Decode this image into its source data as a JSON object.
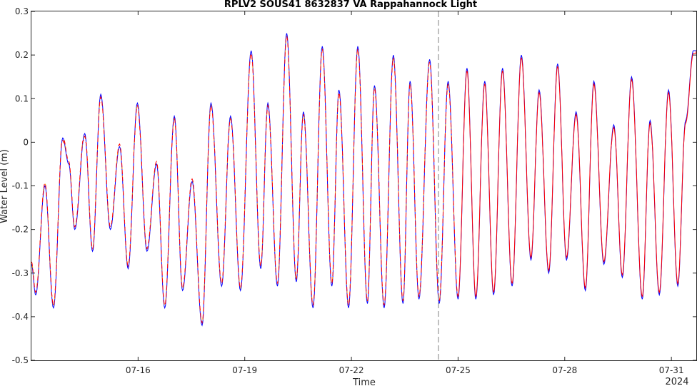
{
  "chart_data": {
    "type": "line",
    "title": "RPLV2 SOUS41 8632837 VA Rappahannock Light",
    "xlabel": "Time",
    "ylabel": "Water Level (m)",
    "year_label": "2024",
    "ylim": [
      -0.5,
      0.3
    ],
    "y_ticks": [
      -0.5,
      -0.4,
      -0.3,
      -0.2,
      -0.1,
      0,
      0.1,
      0.2,
      0.3
    ],
    "y_tick_labels": [
      "-0.5",
      "-0.4",
      "-0.3",
      "-0.2",
      "-0.1",
      "0",
      "0.1",
      "0.2",
      "0.3"
    ],
    "xlim_days": [
      13.0,
      31.7
    ],
    "x_ticks": [
      16,
      19,
      22,
      25,
      28,
      31
    ],
    "x_tick_labels": [
      "07-16",
      "07-19",
      "07-22",
      "07-25",
      "07-28",
      "07-31"
    ],
    "vline_x": 25.0,
    "grid": false,
    "colors": {
      "series_a": "#0000ff",
      "series_b": "#ff0000",
      "series_c": "#ff8c00",
      "axes": "#262626",
      "vline": "#808080"
    },
    "extrema": [
      [
        13.0,
        -0.28
      ],
      [
        13.12,
        -0.35
      ],
      [
        13.38,
        -0.1
      ],
      [
        13.62,
        -0.38
      ],
      [
        13.88,
        0.01
      ],
      [
        14.05,
        -0.05
      ],
      [
        14.22,
        -0.2
      ],
      [
        14.5,
        0.02
      ],
      [
        14.72,
        -0.25
      ],
      [
        14.95,
        0.11
      ],
      [
        15.22,
        -0.2
      ],
      [
        15.48,
        -0.01
      ],
      [
        15.72,
        -0.29
      ],
      [
        15.98,
        0.09
      ],
      [
        16.25,
        -0.25
      ],
      [
        16.52,
        -0.05
      ],
      [
        16.75,
        -0.38
      ],
      [
        17.02,
        0.06
      ],
      [
        17.25,
        -0.34
      ],
      [
        17.52,
        -0.09
      ],
      [
        17.8,
        -0.42
      ],
      [
        18.05,
        0.09
      ],
      [
        18.35,
        -0.33
      ],
      [
        18.6,
        0.06
      ],
      [
        18.88,
        -0.34
      ],
      [
        19.18,
        0.21
      ],
      [
        19.45,
        -0.29
      ],
      [
        19.65,
        0.09
      ],
      [
        19.92,
        -0.33
      ],
      [
        20.18,
        0.25
      ],
      [
        20.45,
        -0.32
      ],
      [
        20.65,
        0.07
      ],
      [
        20.92,
        -0.38
      ],
      [
        21.18,
        0.22
      ],
      [
        21.45,
        -0.33
      ],
      [
        21.65,
        0.12
      ],
      [
        21.92,
        -0.38
      ],
      [
        22.18,
        0.22
      ],
      [
        22.45,
        -0.37
      ],
      [
        22.65,
        0.13
      ],
      [
        22.92,
        -0.38
      ],
      [
        23.18,
        0.2
      ],
      [
        23.45,
        -0.37
      ],
      [
        23.65,
        0.14
      ],
      [
        23.9,
        -0.36
      ],
      [
        24.2,
        0.19
      ],
      [
        24.47,
        -0.37
      ],
      [
        24.72,
        0.14
      ],
      [
        25.0,
        -0.36
      ],
      [
        25.25,
        0.17
      ],
      [
        25.5,
        -0.36
      ],
      [
        25.75,
        0.14
      ],
      [
        26.0,
        -0.35
      ],
      [
        26.25,
        0.17
      ],
      [
        26.52,
        -0.33
      ],
      [
        26.78,
        0.2
      ],
      [
        27.05,
        -0.27
      ],
      [
        27.28,
        0.12
      ],
      [
        27.55,
        -0.3
      ],
      [
        27.8,
        0.18
      ],
      [
        28.05,
        -0.27
      ],
      [
        28.32,
        0.07
      ],
      [
        28.58,
        -0.34
      ],
      [
        28.82,
        0.14
      ],
      [
        29.1,
        -0.28
      ],
      [
        29.38,
        0.04
      ],
      [
        29.62,
        -0.31
      ],
      [
        29.88,
        0.15
      ],
      [
        30.18,
        -0.36
      ],
      [
        30.4,
        0.05
      ],
      [
        30.66,
        -0.35
      ],
      [
        30.92,
        0.12
      ],
      [
        31.18,
        -0.33
      ],
      [
        31.4,
        0.05
      ],
      [
        31.62,
        0.21
      ],
      [
        31.7,
        0.21
      ]
    ]
  }
}
